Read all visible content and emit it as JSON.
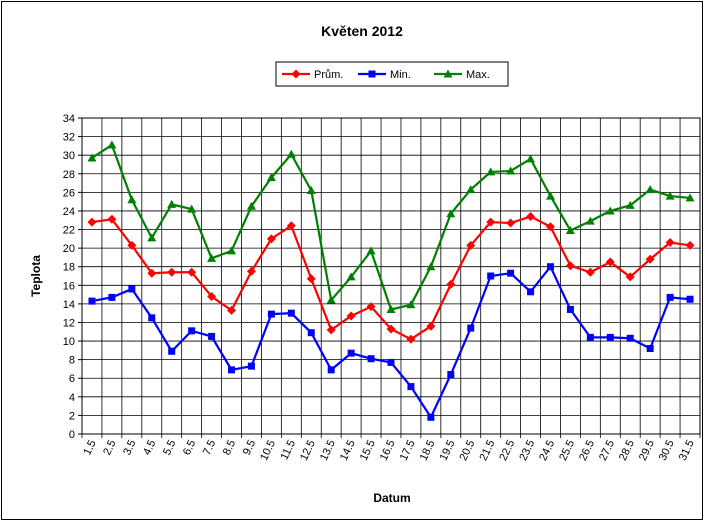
{
  "chart_data": {
    "type": "line",
    "title": "Květen 2012",
    "x_label": "Datum",
    "y_label": "Teplota",
    "categories": [
      "1.5",
      "2.5",
      "3.5",
      "4.5",
      "5.5",
      "6.5",
      "7.5",
      "8.5",
      "9.5",
      "10.5",
      "11.5",
      "12.5",
      "13.5",
      "14.5",
      "15.5",
      "16.5",
      "17.5",
      "18.5",
      "19.5",
      "20.5",
      "21.5",
      "22.5",
      "23.5",
      "24.5",
      "25.5",
      "26.5",
      "27.5",
      "28.5",
      "29.5",
      "30.5",
      "31.5"
    ],
    "series": [
      {
        "name": "Prům.",
        "color": "#ff0000",
        "marker": "diamond",
        "values": [
          22.8,
          23.1,
          20.3,
          17.3,
          17.4,
          17.4,
          14.8,
          13.3,
          17.5,
          21.0,
          22.4,
          16.7,
          11.2,
          12.7,
          13.7,
          11.3,
          10.2,
          11.6,
          16.1,
          20.3,
          22.8,
          22.7,
          23.4,
          22.3,
          18.1,
          17.4,
          18.5,
          16.9,
          18.8,
          20.6,
          20.3
        ]
      },
      {
        "name": "Min.",
        "color": "#0000ff",
        "marker": "square",
        "values": [
          14.3,
          14.7,
          15.6,
          12.5,
          8.9,
          11.1,
          10.5,
          6.9,
          7.3,
          12.9,
          13.0,
          10.9,
          6.9,
          8.7,
          8.1,
          7.7,
          5.1,
          1.8,
          6.4,
          11.4,
          17.0,
          17.3,
          15.3,
          18.0,
          13.4,
          10.4,
          10.4,
          10.3,
          9.2,
          14.7,
          14.5
        ]
      },
      {
        "name": "Max.",
        "color": "#008000",
        "marker": "triangle",
        "values": [
          29.7,
          31.1,
          25.2,
          21.1,
          24.7,
          24.2,
          18.9,
          19.7,
          24.5,
          27.6,
          30.1,
          26.2,
          14.4,
          16.9,
          19.7,
          13.4,
          13.9,
          18.0,
          23.7,
          26.3,
          28.2,
          28.3,
          29.6,
          25.6,
          21.9,
          22.9,
          24.0,
          24.6,
          26.3,
          25.6,
          25.4
        ]
      }
    ],
    "ylim": [
      0,
      34
    ],
    "yticks": [
      0,
      2,
      4,
      6,
      8,
      10,
      12,
      14,
      16,
      18,
      20,
      22,
      24,
      26,
      28,
      30,
      32,
      34
    ],
    "grid": true,
    "legend": "top"
  }
}
